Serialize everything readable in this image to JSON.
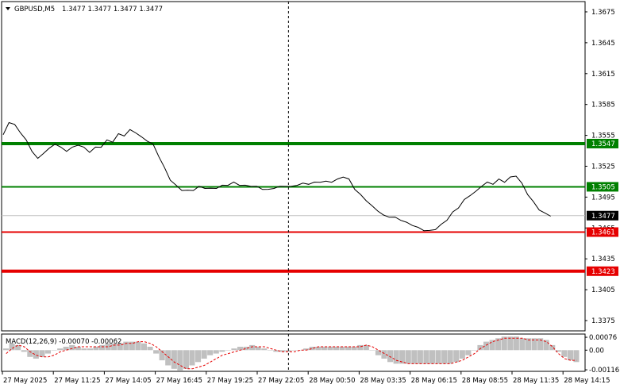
{
  "header": {
    "symbol_label": "GBPUSD,M5",
    "ohlc_values": "1.3477 1.3477 1.3477 1.3477"
  },
  "colors": {
    "background": "#ffffff",
    "price_line": "#000000",
    "grid_current": "#c0c0c0",
    "green_level": "#008000",
    "red_level": "#e60000",
    "macd_hist": "#c0c0c0",
    "macd_signal": "#e60000",
    "crosshair": "#000000"
  },
  "chart_data": [
    {
      "type": "line",
      "title": "GBPUSD,M5",
      "ylim": [
        1.3365,
        1.3685
      ],
      "y_ticks": [
        "1.3675",
        "1.3645",
        "1.3615",
        "1.3585",
        "1.3555",
        "1.3525",
        "1.3495",
        "1.3465",
        "1.3435",
        "1.3405",
        "1.3375"
      ],
      "x_ticks": [
        "27 May 2025",
        "27 May 11:25",
        "27 May 14:05",
        "27 May 16:45",
        "27 May 19:25",
        "27 May 22:05",
        "28 May 00:50",
        "28 May 03:35",
        "28 May 06:15",
        "28 May 08:55",
        "28 May 11:35",
        "28 May 14:15"
      ],
      "x_range": [
        0,
        100
      ],
      "series": [
        {
          "values": [
            [
              0,
              1.3555
            ],
            [
              1,
              1.3568
            ],
            [
              2,
              1.3565
            ],
            [
              3,
              1.3558
            ],
            [
              4,
              1.355
            ],
            [
              5,
              1.354
            ],
            [
              6,
              1.3532
            ],
            [
              7,
              1.3538
            ],
            [
              8,
              1.3542
            ],
            [
              9,
              1.3547
            ],
            [
              10,
              1.3543
            ],
            [
              11,
              1.354
            ],
            [
              12,
              1.3543
            ],
            [
              13,
              1.3546
            ],
            [
              14,
              1.3543
            ],
            [
              15,
              1.3539
            ],
            [
              16,
              1.3543
            ],
            [
              17,
              1.3544
            ],
            [
              18,
              1.355
            ],
            [
              19,
              1.3549
            ],
            [
              20,
              1.3556
            ],
            [
              21,
              1.3555
            ],
            [
              22,
              1.356
            ],
            [
              23,
              1.3558
            ],
            [
              24,
              1.3553
            ],
            [
              25,
              1.355
            ],
            [
              26,
              1.3546
            ],
            [
              27,
              1.3535
            ],
            [
              28,
              1.3523
            ],
            [
              29,
              1.3512
            ],
            [
              30,
              1.3506
            ],
            [
              31,
              1.3502
            ],
            [
              32,
              1.3501
            ],
            [
              33,
              1.3502
            ],
            [
              34,
              1.3505
            ],
            [
              35,
              1.3504
            ],
            [
              36,
              1.3503
            ],
            [
              37,
              1.3504
            ],
            [
              38,
              1.3506
            ],
            [
              39,
              1.3507
            ],
            [
              40,
              1.3509
            ],
            [
              41,
              1.3507
            ],
            [
              42,
              1.3506
            ],
            [
              43,
              1.3506
            ],
            [
              44,
              1.3505
            ],
            [
              45,
              1.3503
            ],
            [
              46,
              1.3502
            ],
            [
              47,
              1.3504
            ],
            [
              48,
              1.3505
            ],
            [
              49,
              1.3506
            ],
            [
              50,
              1.3505
            ],
            [
              51,
              1.3507
            ],
            [
              52,
              1.3508
            ],
            [
              53,
              1.3508
            ],
            [
              54,
              1.3509
            ],
            [
              55,
              1.351
            ],
            [
              56,
              1.351
            ],
            [
              57,
              1.351
            ],
            [
              58,
              1.3512
            ],
            [
              59,
              1.3515
            ],
            [
              60,
              1.3512
            ],
            [
              61,
              1.3503
            ],
            [
              62,
              1.3497
            ],
            [
              63,
              1.3492
            ],
            [
              64,
              1.3486
            ],
            [
              65,
              1.3482
            ],
            [
              66,
              1.3477
            ],
            [
              67,
              1.3476
            ],
            [
              68,
              1.3475
            ],
            [
              69,
              1.3473
            ],
            [
              70,
              1.347
            ],
            [
              71,
              1.3468
            ],
            [
              72,
              1.3465
            ],
            [
              73,
              1.3463
            ],
            [
              74,
              1.3462
            ],
            [
              75,
              1.3464
            ],
            [
              76,
              1.3468
            ],
            [
              77,
              1.3473
            ],
            [
              78,
              1.348
            ],
            [
              79,
              1.3485
            ],
            [
              80,
              1.3492
            ],
            [
              81,
              1.3497
            ],
            [
              82,
              1.35
            ],
            [
              83,
              1.3506
            ],
            [
              84,
              1.3509
            ],
            [
              85,
              1.3508
            ],
            [
              86,
              1.3512
            ],
            [
              87,
              1.351
            ],
            [
              88,
              1.3514
            ],
            [
              89,
              1.3516
            ],
            [
              90,
              1.3508
            ],
            [
              91,
              1.3498
            ],
            [
              92,
              1.349
            ],
            [
              93,
              1.3483
            ],
            [
              94,
              1.3479
            ],
            [
              95,
              1.3477
            ]
          ]
        }
      ],
      "current_price": "1.3477",
      "levels": [
        {
          "label": "1.3547",
          "value": 1.3547,
          "color": "green",
          "thick": true
        },
        {
          "label": "1.3505",
          "value": 1.3505,
          "color": "green",
          "thick": false
        },
        {
          "label": "1.3461",
          "value": 1.3461,
          "color": "red",
          "thick": false
        },
        {
          "label": "1.3423",
          "value": 1.3423,
          "color": "red",
          "thick": true
        }
      ],
      "vertical_marker_x": 49.5,
      "grid": false
    },
    {
      "type": "bar",
      "title": "MACD(12,26,9) -0.00070 -0.00062",
      "ylim": [
        -0.00125,
        0.00095
      ],
      "y_ticks": [
        {
          "label": "0.00076",
          "value": 0.00076
        },
        {
          "label": "0.00",
          "value": 0.0
        },
        {
          "label": "-0.00116",
          "value": -0.00116
        }
      ],
      "x_range": [
        0,
        100
      ],
      "histogram_values": [
        0.0001,
        0.0004,
        0.0003,
        -0.0001,
        -0.0004,
        -0.0005,
        -0.0004,
        -0.0002,
        0.0,
        0.0001,
        0.0002,
        0.0003,
        0.0002,
        0.0001,
        0.0001,
        0.0002,
        0.0003,
        0.0004,
        0.0004,
        0.0004,
        0.0005,
        0.0005,
        0.0005,
        0.0004,
        0.0002,
        -0.0002,
        -0.0006,
        -0.0009,
        -0.0011,
        -0.0012,
        -0.0011,
        -0.0009,
        -0.0007,
        -0.0005,
        -0.0003,
        -0.0002,
        -0.0001,
        0.0,
        0.0001,
        0.0002,
        0.0002,
        0.0003,
        0.0002,
        0.0001,
        0.0,
        -0.0001,
        -0.0001,
        -0.0001,
        0.0,
        0.0,
        0.0001,
        0.0002,
        0.0002,
        0.0002,
        0.0002,
        0.0002,
        0.0002,
        0.0002,
        0.0002,
        0.0003,
        0.0003,
        0.0,
        -0.0003,
        -0.0005,
        -0.0007,
        -0.0008,
        -0.0008,
        -0.0008,
        -0.0008,
        -0.0008,
        -0.0008,
        -0.0008,
        -0.0008,
        -0.0008,
        -0.0008,
        -0.0007,
        -0.0005,
        -0.0003,
        0.0,
        0.0003,
        0.0005,
        0.0006,
        0.0007,
        0.0008,
        0.0008,
        0.0008,
        0.0007,
        0.0007,
        0.0007,
        0.0007,
        0.0006,
        0.0003,
        -0.0001,
        -0.0004,
        -0.0006,
        -0.0007
      ],
      "signal_values": [
        -0.0002,
        0.0001,
        0.0003,
        0.0002,
        -0.0001,
        -0.0003,
        -0.0004,
        -0.0004,
        -0.0003,
        -0.0001,
        0.0,
        0.0001,
        0.0002,
        0.0002,
        0.0002,
        0.0002,
        0.0002,
        0.0002,
        0.0003,
        0.0003,
        0.0004,
        0.0004,
        0.0005,
        0.0005,
        0.0004,
        0.0002,
        -0.0001,
        -0.0004,
        -0.0007,
        -0.0009,
        -0.0011,
        -0.0011,
        -0.001,
        -0.0009,
        -0.0007,
        -0.0005,
        -0.0003,
        -0.0002,
        -0.0001,
        0.0,
        0.0001,
        0.0002,
        0.0002,
        0.0002,
        0.0001,
        0.0,
        -0.0001,
        -0.0001,
        -0.0001,
        0.0,
        0.0,
        0.0001,
        0.0002,
        0.0002,
        0.0002,
        0.0002,
        0.0002,
        0.0002,
        0.0002,
        0.0002,
        0.0003,
        0.0002,
        0.0,
        -0.0002,
        -0.0004,
        -0.0006,
        -0.0007,
        -0.0008,
        -0.0008,
        -0.0008,
        -0.0008,
        -0.0008,
        -0.0008,
        -0.0008,
        -0.0008,
        -0.0007,
        -0.0006,
        -0.0004,
        -0.0002,
        0.0001,
        0.0003,
        0.0005,
        0.0006,
        0.0007,
        0.0007,
        0.0007,
        0.0007,
        0.0006,
        0.0006,
        0.0006,
        0.0005,
        0.0002,
        -0.0002,
        -0.0005,
        -0.0006,
        -0.0006
      ]
    }
  ]
}
